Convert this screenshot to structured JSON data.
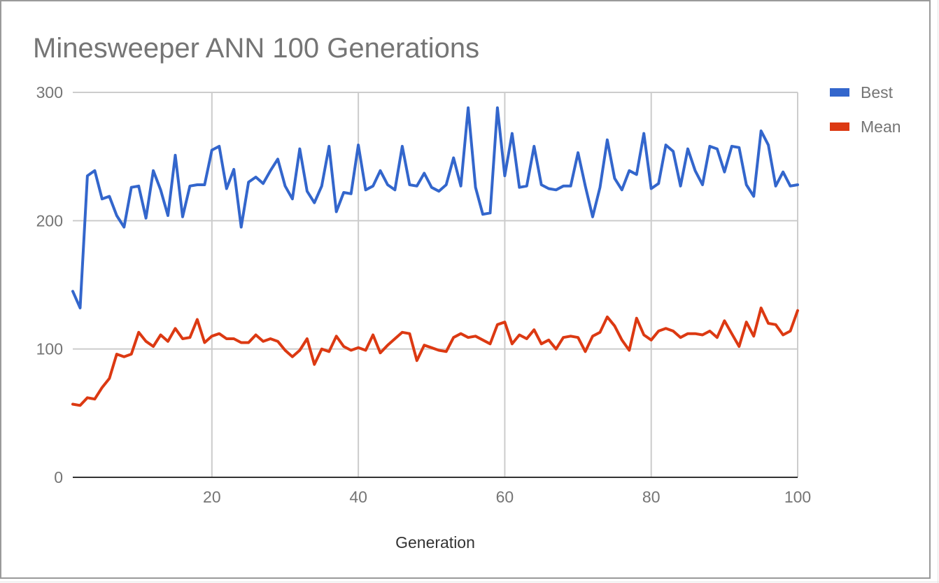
{
  "chart_data": {
    "type": "line",
    "title": "Minesweeper ANN 100 Generations",
    "xlabel": "Generation",
    "ylabel": "",
    "xlim": [
      1,
      100
    ],
    "ylim": [
      0,
      300
    ],
    "xticks": [
      20,
      40,
      60,
      80,
      100
    ],
    "yticks": [
      0,
      100,
      200,
      300
    ],
    "grid": true,
    "legend_position": "right",
    "x": [
      1,
      2,
      3,
      4,
      5,
      6,
      7,
      8,
      9,
      10,
      11,
      12,
      13,
      14,
      15,
      16,
      17,
      18,
      19,
      20,
      21,
      22,
      23,
      24,
      25,
      26,
      27,
      28,
      29,
      30,
      31,
      32,
      33,
      34,
      35,
      36,
      37,
      38,
      39,
      40,
      41,
      42,
      43,
      44,
      45,
      46,
      47,
      48,
      49,
      50,
      51,
      52,
      53,
      54,
      55,
      56,
      57,
      58,
      59,
      60,
      61,
      62,
      63,
      64,
      65,
      66,
      67,
      68,
      69,
      70,
      71,
      72,
      73,
      74,
      75,
      76,
      77,
      78,
      79,
      80,
      81,
      82,
      83,
      84,
      85,
      86,
      87,
      88,
      89,
      90,
      91,
      92,
      93,
      94,
      95,
      96,
      97,
      98,
      99,
      100
    ],
    "series": [
      {
        "name": "Best",
        "color": "#3366cc",
        "values": [
          145,
          132,
          235,
          239,
          217,
          219,
          204,
          195,
          226,
          227,
          202,
          239,
          224,
          204,
          251,
          203,
          227,
          228,
          228,
          255,
          258,
          225,
          240,
          195,
          230,
          234,
          229,
          239,
          248,
          227,
          217,
          256,
          223,
          214,
          227,
          258,
          207,
          222,
          221,
          259,
          224,
          227,
          239,
          228,
          224,
          258,
          228,
          227,
          237,
          226,
          223,
          228,
          249,
          227,
          288,
          226,
          205,
          206,
          288,
          235,
          268,
          226,
          227,
          258,
          228,
          225,
          224,
          227,
          227,
          253,
          227,
          203,
          226,
          263,
          233,
          224,
          239,
          236,
          268,
          225,
          229,
          259,
          254,
          227,
          256,
          239,
          228,
          258,
          256,
          238,
          258,
          257,
          228,
          219,
          270,
          259,
          227,
          238,
          227,
          228
        ]
      },
      {
        "name": "Mean",
        "color": "#dc3912",
        "values": [
          57,
          56,
          62,
          61,
          70,
          77,
          96,
          94,
          96,
          113,
          106,
          102,
          111,
          106,
          116,
          108,
          109,
          123,
          105,
          110,
          112,
          108,
          108,
          105,
          105,
          111,
          106,
          108,
          106,
          99,
          94,
          99,
          108,
          88,
          100,
          98,
          110,
          102,
          99,
          101,
          99,
          111,
          97,
          103,
          108,
          113,
          112,
          91,
          103,
          101,
          99,
          98,
          109,
          112,
          109,
          110,
          107,
          104,
          119,
          121,
          104,
          111,
          108,
          115,
          104,
          107,
          100,
          109,
          110,
          109,
          98,
          110,
          113,
          125,
          118,
          107,
          99,
          124,
          111,
          107,
          114,
          116,
          114,
          109,
          112,
          112,
          111,
          114,
          109,
          122,
          112,
          102,
          121,
          110,
          132,
          120,
          119,
          111,
          114,
          130
        ]
      }
    ]
  }
}
